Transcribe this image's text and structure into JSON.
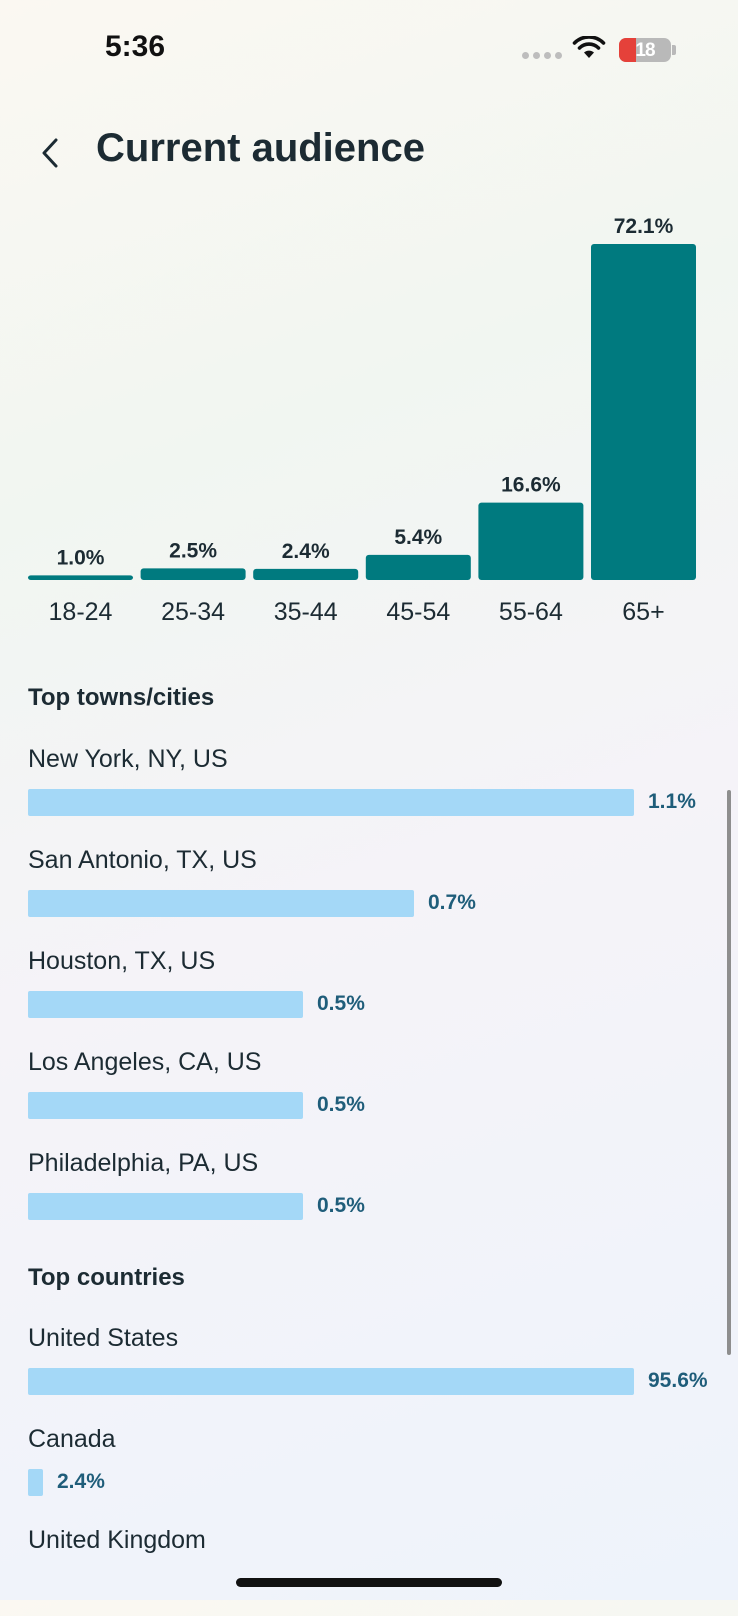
{
  "status": {
    "time": "5:36",
    "battery": "18"
  },
  "header": {
    "title": "Current audience"
  },
  "colors": {
    "bar_teal": "#007a7f",
    "bar_light": "#a4d8f7",
    "pct_text": "#1f5d7a"
  },
  "chart_data": {
    "type": "bar",
    "categories": [
      "18-24",
      "25-34",
      "35-44",
      "45-54",
      "55-64",
      "65+"
    ],
    "values": [
      1.0,
      2.5,
      2.4,
      5.4,
      16.6,
      72.1
    ],
    "value_labels": [
      "1.0%",
      "2.5%",
      "2.4%",
      "5.4%",
      "16.6%",
      "72.1%"
    ],
    "ylim": [
      0,
      72.1
    ],
    "grid": false
  },
  "cities": {
    "title": "Top towns/cities",
    "items": [
      {
        "name": "New York, NY, US",
        "value": 1.1,
        "pct": "1.1%"
      },
      {
        "name": "San Antonio, TX, US",
        "value": 0.7,
        "pct": "0.7%"
      },
      {
        "name": "Houston, TX, US",
        "value": 0.5,
        "pct": "0.5%"
      },
      {
        "name": "Los Angeles, CA, US",
        "value": 0.5,
        "pct": "0.5%"
      },
      {
        "name": "Philadelphia, PA, US",
        "value": 0.5,
        "pct": "0.5%"
      }
    ]
  },
  "countries": {
    "title": "Top countries",
    "items": [
      {
        "name": "United States",
        "value": 95.6,
        "pct": "95.6%"
      },
      {
        "name": "Canada",
        "value": 2.4,
        "pct": "2.4%"
      },
      {
        "name": "United Kingdom",
        "value": null,
        "pct": ""
      }
    ]
  }
}
